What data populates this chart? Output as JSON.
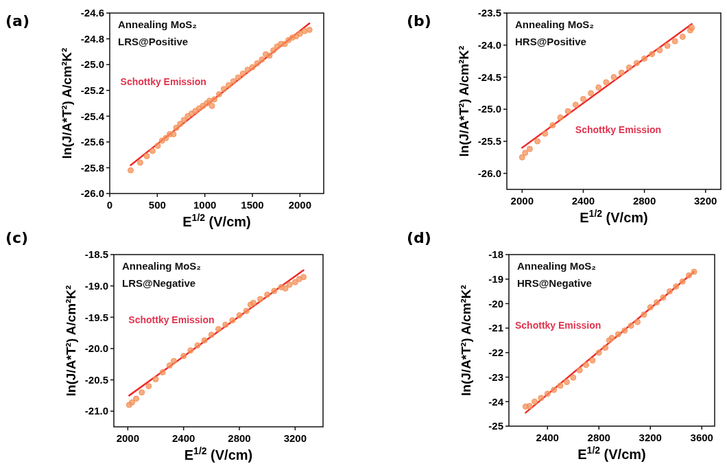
{
  "chart_data": [
    {
      "type": "scatter",
      "title": "(a)",
      "xlabel": "E$^{1/2}$ (V/cm)",
      "ylabel": "ln(J/A*T²) A/cm²K²",
      "annotations": [
        "Annealing MoS₂",
        "LRS@Positive",
        "Schottky Emission"
      ],
      "xlim": [
        0,
        2250
      ],
      "xticks": [
        0,
        500,
        1000,
        1500,
        2000
      ],
      "ylim": [
        -26.0,
        -24.6
      ],
      "yticks": [
        {
          "value": -26.0,
          "label": "-26.0"
        },
        {
          "value": -25.8,
          "label": "-25.8"
        },
        {
          "value": -25.6,
          "label": "-25.6"
        },
        {
          "value": -25.4,
          "label": "-25.4"
        },
        {
          "value": -25.2,
          "label": "-25.2"
        },
        {
          "value": -25.0,
          "label": "-25.0"
        },
        {
          "value": -24.8,
          "label": "-24.8"
        },
        {
          "value": -24.6,
          "label": "-24.6"
        }
      ],
      "grid": false,
      "series": [
        {
          "marker": "circle",
          "color": "#f4925a",
          "x": [
            220,
            320,
            390,
            450,
            505,
            550,
            590,
            630,
            670,
            700,
            740,
            780,
            820,
            860,
            900,
            940,
            980,
            1020,
            1050,
            1075,
            1100,
            1150,
            1200,
            1250,
            1300,
            1350,
            1400,
            1450,
            1500,
            1550,
            1600,
            1640,
            1680,
            1720,
            1760,
            1800,
            1840,
            1880,
            1920,
            1960,
            2000,
            2050,
            2100
          ],
          "values": [
            -25.82,
            -25.76,
            -25.71,
            -25.67,
            -25.63,
            -25.59,
            -25.57,
            -25.54,
            -25.54,
            -25.49,
            -25.46,
            -25.43,
            -25.4,
            -25.38,
            -25.36,
            -25.34,
            -25.32,
            -25.3,
            -25.28,
            -25.32,
            -25.27,
            -25.23,
            -25.19,
            -25.16,
            -25.13,
            -25.1,
            -25.07,
            -25.04,
            -25.02,
            -24.99,
            -24.96,
            -24.92,
            -24.93,
            -24.89,
            -24.86,
            -24.84,
            -24.84,
            -24.81,
            -24.79,
            -24.78,
            -24.76,
            -24.74,
            -24.73
          ]
        },
        {
          "type": "line",
          "line_style": "solid",
          "color": "#ee2b2b",
          "x": [
            220,
            2100
          ],
          "values": [
            -25.78,
            -24.68
          ]
        }
      ]
    },
    {
      "type": "scatter",
      "title": "(b)",
      "xlabel": "E$^{1/2}$ (V/cm)",
      "ylabel": "ln(J/A*T²) A/cm²K²",
      "annotations": [
        "Annealing MoS₂",
        "HRS@Positive",
        "Schottky Emission"
      ],
      "xlim": [
        1900,
        3300
      ],
      "xticks": [
        2000,
        2400,
        2800,
        3200
      ],
      "ylim": [
        -26.25,
        -23.5
      ],
      "yticks": [
        {
          "value": -26.0,
          "label": "-26.0"
        },
        {
          "value": -25.5,
          "label": "-25.5"
        },
        {
          "value": -25.0,
          "label": "-25.0"
        },
        {
          "value": -24.5,
          "label": "-24.5"
        },
        {
          "value": -24.0,
          "label": "-24.0"
        },
        {
          "value": -23.5,
          "label": "-23.5"
        }
      ],
      "grid": false,
      "series": [
        {
          "marker": "circle",
          "color": "#f4925a",
          "x": [
            2000,
            2020,
            2050,
            2100,
            2150,
            2200,
            2250,
            2300,
            2350,
            2400,
            2450,
            2500,
            2550,
            2600,
            2650,
            2700,
            2750,
            2800,
            2850,
            2900,
            2950,
            3000,
            3050,
            3100,
            3110
          ],
          "values": [
            -25.75,
            -25.68,
            -25.62,
            -25.5,
            -25.38,
            -25.25,
            -25.13,
            -25.03,
            -24.93,
            -24.84,
            -24.75,
            -24.66,
            -24.58,
            -24.5,
            -24.43,
            -24.35,
            -24.28,
            -24.21,
            -24.14,
            -24.08,
            -24.01,
            -23.94,
            -23.87,
            -23.77,
            -23.73
          ]
        },
        {
          "type": "line",
          "line_style": "solid",
          "color": "#ee2b2b",
          "x": [
            2000,
            3110
          ],
          "values": [
            -25.6,
            -23.67
          ]
        }
      ]
    },
    {
      "type": "scatter",
      "title": "(c)",
      "xlabel": "E$^{1/2}$ (V/cm)",
      "ylabel": "ln(J/A*T²) A/cm²K²",
      "annotations": [
        "Annealing MoS₂",
        "LRS@Negative",
        "Schottky Emission"
      ],
      "xlim": [
        1900,
        3400
      ],
      "xticks": [
        2000,
        2400,
        2800,
        3200
      ],
      "ylim": [
        -21.25,
        -18.5
      ],
      "yticks": [
        {
          "value": -21.0,
          "label": "-21.0"
        },
        {
          "value": -20.5,
          "label": "-20.5"
        },
        {
          "value": -20.0,
          "label": "-20.0"
        },
        {
          "value": -19.5,
          "label": "-19.5"
        },
        {
          "value": -19.0,
          "label": "-19.0"
        },
        {
          "value": -18.5,
          "label": "-18.5"
        }
      ],
      "grid": false,
      "series": [
        {
          "marker": "circle",
          "color": "#f4925a",
          "x": [
            2010,
            2030,
            2060,
            2100,
            2150,
            2200,
            2250,
            2300,
            2330,
            2400,
            2450,
            2500,
            2550,
            2600,
            2650,
            2700,
            2750,
            2800,
            2850,
            2880,
            2900,
            2950,
            3000,
            3050,
            3100,
            3130,
            3160,
            3200,
            3230,
            3260
          ],
          "values": [
            -20.9,
            -20.86,
            -20.8,
            -20.7,
            -20.6,
            -20.49,
            -20.38,
            -20.27,
            -20.2,
            -20.12,
            -20.03,
            -19.95,
            -19.87,
            -19.78,
            -19.69,
            -19.62,
            -19.55,
            -19.47,
            -19.4,
            -19.3,
            -19.27,
            -19.21,
            -19.14,
            -19.08,
            -19.02,
            -19.04,
            -18.98,
            -18.94,
            -18.89,
            -18.86
          ]
        },
        {
          "type": "line",
          "line_style": "solid",
          "color": "#ee2b2b",
          "x": [
            2010,
            3260
          ],
          "values": [
            -20.75,
            -18.75
          ]
        }
      ]
    },
    {
      "type": "scatter",
      "title": "(d)",
      "xlabel": "E$^{1/2}$ (V/cm)",
      "ylabel": "ln(J/A*T²) A/cm²K²",
      "annotations": [
        "Annealing MoS₂",
        "HRS@Negative",
        "Schottky Emission"
      ],
      "xlim": [
        2100,
        3700
      ],
      "xticks": [
        2400,
        2800,
        3200,
        3600
      ],
      "ylim": [
        -25,
        -18
      ],
      "yticks": [
        -25,
        -24,
        -23,
        -22,
        -21,
        -20,
        -19,
        -18
      ],
      "grid": false,
      "series": [
        {
          "marker": "circle",
          "color": "#f4925a",
          "x": [
            2230,
            2260,
            2300,
            2350,
            2400,
            2450,
            2500,
            2550,
            2600,
            2650,
            2700,
            2750,
            2800,
            2850,
            2880,
            2900,
            2950,
            3000,
            3050,
            3100,
            3150,
            3200,
            3250,
            3300,
            3350,
            3400,
            3450,
            3500,
            3540
          ],
          "values": [
            -24.2,
            -24.18,
            -24.0,
            -23.85,
            -23.68,
            -23.52,
            -23.35,
            -23.2,
            -23.02,
            -22.72,
            -22.5,
            -22.32,
            -22.0,
            -21.8,
            -21.5,
            -21.4,
            -21.25,
            -21.1,
            -20.9,
            -20.75,
            -20.45,
            -20.15,
            -19.95,
            -19.75,
            -19.5,
            -19.3,
            -19.1,
            -18.85,
            -18.7
          ]
        },
        {
          "type": "line",
          "line_style": "solid",
          "color": "#ee2b2b",
          "x": [
            2230,
            3540
          ],
          "values": [
            -24.45,
            -18.7
          ]
        }
      ]
    }
  ]
}
